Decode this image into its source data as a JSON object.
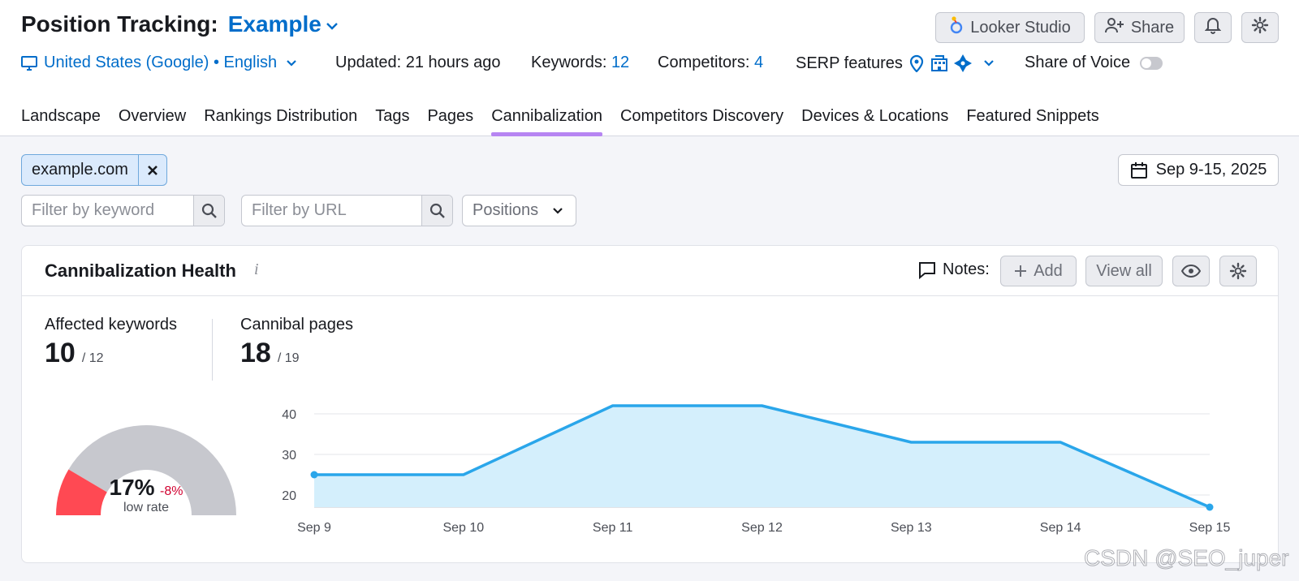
{
  "header": {
    "title_prefix": "Position Tracking:",
    "project_name": "Example",
    "location": "United States (Google) • English",
    "updated": "Updated: 21 hours ago",
    "keywords_label": "Keywords:",
    "keywords_count": "12",
    "competitors_label": "Competitors:",
    "competitors_count": "4",
    "serp_features_label": "SERP features",
    "share_of_voice_label": "Share of Voice",
    "share_of_voice_on": false
  },
  "toolbar": {
    "looker_label": "Looker Studio",
    "share_label": "Share"
  },
  "tabs": [
    {
      "label": "Landscape",
      "active": false
    },
    {
      "label": "Overview",
      "active": false
    },
    {
      "label": "Rankings Distribution",
      "active": false
    },
    {
      "label": "Tags",
      "active": false
    },
    {
      "label": "Pages",
      "active": false
    },
    {
      "label": "Cannibalization",
      "active": true
    },
    {
      "label": "Competitors Discovery",
      "active": false
    },
    {
      "label": "Devices & Locations",
      "active": false
    },
    {
      "label": "Featured Snippets",
      "active": false
    }
  ],
  "filters": {
    "domain_chip": "example.com",
    "date_range": "Sep 9-15, 2025",
    "keyword_placeholder": "Filter by keyword",
    "url_placeholder": "Filter by URL",
    "positions_label": "Positions"
  },
  "card": {
    "title": "Cannibalization Health",
    "info_icon": "i",
    "notes_label": "Notes:",
    "add_label": "Add",
    "view_all_label": "View all",
    "affected_label": "Affected keywords",
    "affected_value": "10",
    "affected_total": "/ 12",
    "pages_label": "Cannibal pages",
    "pages_value": "18",
    "pages_total": "/ 19",
    "gauge_value": "17%",
    "gauge_change": "-8%",
    "gauge_caption": "low rate",
    "gauge_fraction": 0.17
  },
  "colors": {
    "accent": "#006dca",
    "tab_underline": "#b685f2",
    "line": "#2aa6ea",
    "area": "#d4effc",
    "gauge_bad": "#ff4953",
    "gauge_rest": "#c7c8ce",
    "negative": "#d1002f"
  },
  "chart_data": {
    "type": "area",
    "categories": [
      "Sep 9",
      "Sep 10",
      "Sep 11",
      "Sep 12",
      "Sep 13",
      "Sep 14",
      "Sep 15"
    ],
    "series": [
      {
        "values": [
          25,
          25,
          42,
          42,
          33,
          33,
          17
        ]
      }
    ],
    "yticks": [
      20,
      30,
      40
    ],
    "ylim": [
      17,
      43
    ],
    "grid": true
  },
  "watermark": "CSDN @SEO_juper"
}
